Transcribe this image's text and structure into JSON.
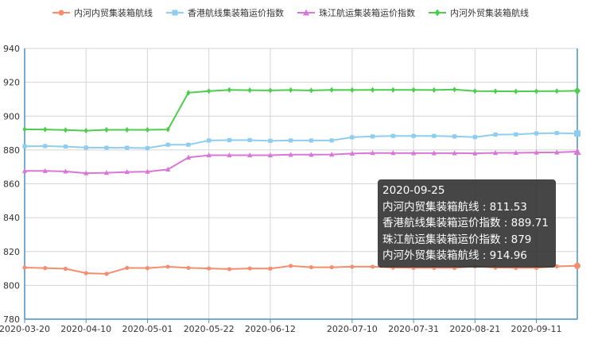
{
  "chart_data": {
    "type": "line",
    "title": "",
    "xlabel": "",
    "ylabel": "",
    "ylim": [
      780,
      940
    ],
    "yticks": [
      780,
      800,
      820,
      840,
      860,
      880,
      900,
      920,
      940
    ],
    "grid": true,
    "legend_position": "top-center",
    "x_tick_labels": [
      "2020-03-20",
      "2020-04-10",
      "2020-05-01",
      "2020-05-22",
      "2020-06-12",
      "2020-07-10",
      "2020-07-31",
      "2020-08-21",
      "2020-09-11"
    ],
    "x": [
      "2020-03-20",
      "2020-03-27",
      "2020-04-03",
      "2020-04-10",
      "2020-04-17",
      "2020-04-24",
      "2020-05-01",
      "2020-05-08",
      "2020-05-15",
      "2020-05-22",
      "2020-05-29",
      "2020-06-05",
      "2020-06-12",
      "2020-06-19",
      "2020-06-26",
      "2020-07-03",
      "2020-07-10",
      "2020-07-17",
      "2020-07-24",
      "2020-07-31",
      "2020-08-07",
      "2020-08-14",
      "2020-08-21",
      "2020-08-28",
      "2020-09-04",
      "2020-09-11",
      "2020-09-18",
      "2020-09-25"
    ],
    "series": [
      {
        "name": "内河内贸集装箱航线",
        "color": "#f58e6e",
        "marker": "circle",
        "values": [
          810.5,
          810.2,
          809.8,
          807.2,
          806.8,
          810.3,
          810.2,
          811.0,
          810.3,
          810.0,
          809.6,
          810.0,
          809.9,
          811.5,
          810.7,
          810.7,
          811.0,
          811.0,
          810.5,
          810.3,
          810.3,
          810.3,
          811.2,
          810.5,
          810.3,
          810.3,
          811.2,
          811.53
        ]
      },
      {
        "name": "香港航线集装箱运价指数",
        "color": "#8ecdf0",
        "marker": "square",
        "values": [
          882.2,
          882.3,
          882.0,
          881.4,
          881.3,
          881.3,
          881.1,
          883.1,
          883.1,
          885.6,
          885.8,
          885.8,
          885.4,
          885.6,
          885.6,
          885.6,
          887.5,
          888.0,
          888.3,
          888.3,
          888.3,
          888.0,
          887.6,
          889.1,
          889.2,
          889.8,
          890.0,
          889.71
        ]
      },
      {
        "name": "珠江航运集装箱运价指数",
        "color": "#d877d8",
        "marker": "triangle",
        "values": [
          867.6,
          867.6,
          867.3,
          866.3,
          866.5,
          867.0,
          867.2,
          868.5,
          875.6,
          876.9,
          876.9,
          876.9,
          876.9,
          877.2,
          877.2,
          877.3,
          877.9,
          878.2,
          878.2,
          878.1,
          878.1,
          878.1,
          878.0,
          878.3,
          878.3,
          878.5,
          878.6,
          879
        ]
      },
      {
        "name": "内河外贸集装箱航线",
        "color": "#4dcc4d",
        "marker": "diamond",
        "values": [
          892.2,
          892.1,
          891.8,
          891.4,
          891.9,
          891.9,
          891.9,
          892.1,
          913.8,
          914.8,
          915.5,
          915.3,
          915.2,
          915.4,
          915.2,
          915.5,
          915.4,
          915.5,
          915.5,
          915.5,
          915.4,
          915.7,
          914.8,
          914.7,
          914.6,
          914.7,
          914.8,
          914.96
        ]
      }
    ]
  },
  "tooltip": {
    "date": "2020-09-25",
    "rows": [
      "内河内贸集装箱航线 : 811.53",
      "香港航线集装箱运价指数 : 889.71",
      "珠江航运集装箱运价指数 : 879",
      "内河外贸集装箱航线 : 914.96"
    ]
  }
}
